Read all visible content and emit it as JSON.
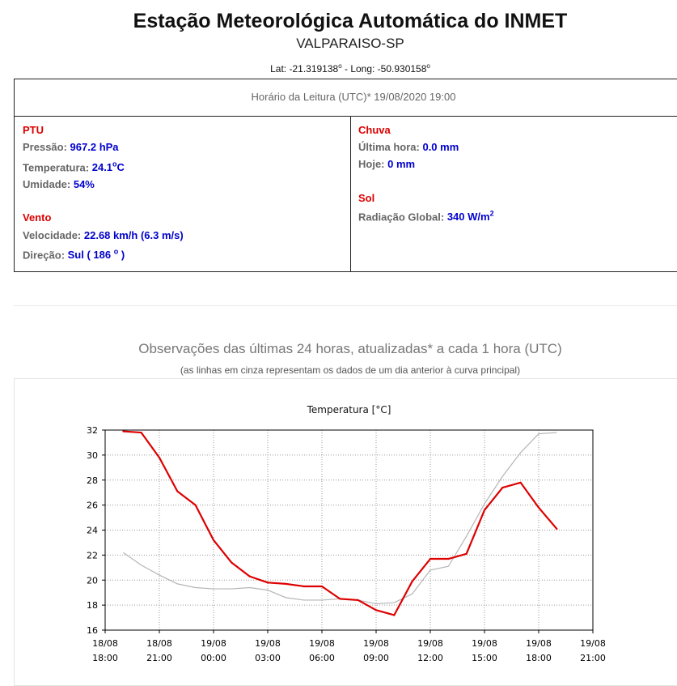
{
  "header": {
    "title": "Estação Meteorológica Automática do INMET",
    "station": "VALPARAISO-SP",
    "lat_label": "Lat: -21.319138",
    "long_label": " - Long: -50.930158",
    "degree_mark": "o"
  },
  "reading": {
    "time_label": "Horário da Leitura (UTC)* 19/08/2020 19:00"
  },
  "ptu": {
    "title": "PTU",
    "pressure_label": "Pressão: ",
    "pressure_value": "967.2 hPa",
    "temperature_label": "Temperatura: ",
    "temperature_value": "24.1",
    "temperature_sup": "o",
    "temperature_unit": "C",
    "humidity_label": "Umidade: ",
    "humidity_value": "54%"
  },
  "wind": {
    "title": "Vento",
    "speed_label": "Velocidade: ",
    "speed_value": "22.68 km/h (6.3 m/s)",
    "direction_label": "Direção: ",
    "direction_value": "Sul ( 186 ",
    "direction_sup": "o",
    "direction_close": " )"
  },
  "rain": {
    "title": "Chuva",
    "last_hour_label": "Última hora: ",
    "last_hour_value": "0.0 mm",
    "today_label": "Hoje: ",
    "today_value": "0 mm"
  },
  "sun": {
    "title": "Sol",
    "radiation_label": "Radiação Global: ",
    "radiation_value": "340 W/m",
    "radiation_sup": "2"
  },
  "observations": {
    "title": "Observações das últimas 24 horas, atualizadas* a cada 1 hora (UTC)",
    "subtitle": "(as linhas em cinza representam os dados de um dia anterior à curva principal)"
  },
  "chart_data": {
    "type": "line",
    "title": "Temperatura [°C]",
    "xlabel": "",
    "ylabel": "",
    "ylim": [
      16,
      32
    ],
    "xlim": [
      18,
      45
    ],
    "yticks": [
      16,
      18,
      20,
      22,
      24,
      26,
      28,
      30,
      32
    ],
    "xticks": [
      {
        "x": 18,
        "date": "18/08",
        "time": "18:00"
      },
      {
        "x": 21,
        "date": "18/08",
        "time": "21:00"
      },
      {
        "x": 24,
        "date": "19/08",
        "time": "00:00"
      },
      {
        "x": 27,
        "date": "19/08",
        "time": "03:00"
      },
      {
        "x": 30,
        "date": "19/08",
        "time": "06:00"
      },
      {
        "x": 33,
        "date": "19/08",
        "time": "09:00"
      },
      {
        "x": 36,
        "date": "19/08",
        "time": "12:00"
      },
      {
        "x": 39,
        "date": "19/08",
        "time": "15:00"
      },
      {
        "x": 42,
        "date": "19/08",
        "time": "18:00"
      },
      {
        "x": 45,
        "date": "19/08",
        "time": "21:00"
      }
    ],
    "grid": true,
    "colors": {
      "main": "#dd0000",
      "previous": "#b5b5b5"
    },
    "series": [
      {
        "x": [
          19,
          20,
          21,
          22,
          23,
          24,
          25,
          26,
          27,
          28,
          29,
          30,
          31,
          32,
          33,
          34,
          35,
          36,
          37,
          38,
          39,
          40,
          41,
          42,
          43
        ],
        "values": [
          31.9,
          31.8,
          29.8,
          27.1,
          26.0,
          23.2,
          21.4,
          20.3,
          19.8,
          19.7,
          19.5,
          19.5,
          18.5,
          18.4,
          17.6,
          17.2,
          19.9,
          21.7,
          21.7,
          22.1,
          25.6,
          27.4,
          27.8,
          25.8,
          24.1
        ]
      },
      {
        "x": [
          19,
          20,
          21,
          22,
          23,
          24,
          25,
          26,
          27,
          28,
          29,
          30,
          31,
          32,
          33,
          34,
          35,
          36,
          37,
          38,
          39,
          40,
          41,
          42,
          43
        ],
        "values": [
          22.2,
          21.2,
          20.4,
          19.7,
          19.4,
          19.3,
          19.3,
          19.4,
          19.2,
          18.6,
          18.4,
          18.4,
          18.5,
          18.4,
          18.1,
          18.2,
          18.9,
          20.8,
          21.1,
          23.5,
          26.1,
          28.3,
          30.2,
          31.7,
          31.8
        ]
      }
    ]
  }
}
